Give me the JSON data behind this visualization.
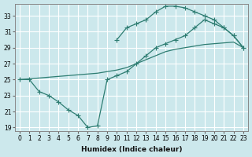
{
  "xlabel": "Humidex (Indice chaleur)",
  "bg_color": "#cce8ec",
  "grid_color": "#ffffff",
  "line_color": "#2e7d72",
  "xlim": [
    -0.5,
    23.5
  ],
  "ylim": [
    18.5,
    34.5
  ],
  "xticks": [
    0,
    1,
    2,
    3,
    4,
    5,
    6,
    7,
    8,
    9,
    10,
    11,
    12,
    13,
    14,
    15,
    16,
    17,
    18,
    19,
    20,
    21,
    22,
    23
  ],
  "yticks": [
    19,
    21,
    23,
    25,
    27,
    29,
    31,
    33
  ],
  "line1_x": [
    10,
    11,
    12,
    13,
    14,
    15,
    16,
    17,
    18,
    19,
    20,
    21,
    22,
    23
  ],
  "line1_y": [
    30.0,
    31.5,
    32.0,
    32.5,
    33.5,
    34.2,
    34.2,
    34.0,
    33.5,
    33.0,
    32.5,
    31.5,
    30.5,
    29.0
  ],
  "line2_x": [
    0,
    1,
    2,
    3,
    4,
    5,
    6,
    7,
    8,
    9,
    10,
    11,
    12,
    13,
    14,
    15,
    16,
    17,
    18,
    19,
    20,
    21,
    22,
    23
  ],
  "line2_y": [
    25.0,
    25.1,
    25.2,
    25.3,
    25.4,
    25.5,
    25.6,
    25.7,
    25.8,
    26.0,
    26.2,
    26.5,
    27.0,
    27.5,
    28.0,
    28.5,
    28.8,
    29.0,
    29.2,
    29.4,
    29.5,
    29.6,
    29.7,
    29.0
  ],
  "line3_x": [
    0,
    1,
    2,
    3,
    4,
    5,
    6,
    7,
    8,
    9,
    10,
    11,
    12,
    13,
    14,
    15,
    16,
    17,
    18,
    19,
    20,
    21,
    22,
    23
  ],
  "line3_y": [
    25.0,
    25.0,
    23.5,
    23.0,
    22.2,
    21.2,
    20.5,
    19.0,
    19.2,
    25.0,
    25.5,
    26.0,
    27.0,
    28.0,
    29.0,
    29.5,
    30.0,
    30.5,
    31.5,
    32.5,
    32.0,
    31.5,
    30.5,
    29.0
  ]
}
